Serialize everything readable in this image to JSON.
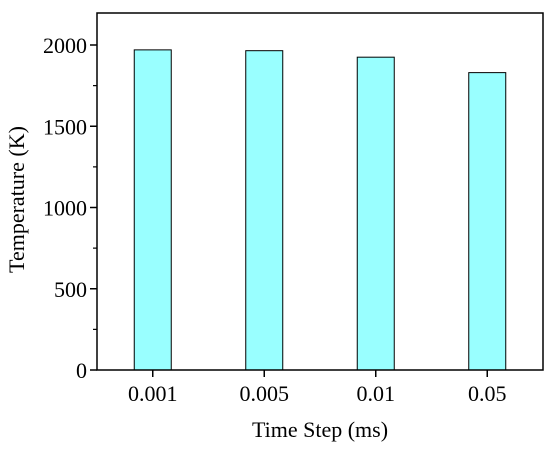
{
  "chart_data": {
    "type": "bar",
    "categories": [
      "0.001",
      "0.005",
      "0.01",
      "0.05"
    ],
    "values": [
      1970,
      1965,
      1925,
      1830
    ],
    "xlabel": "Time Step (ms)",
    "ylabel": "Temperature (K)",
    "ylim": [
      0,
      2000
    ],
    "yticks": [
      "0",
      "500",
      "1000",
      "1500",
      "2000"
    ],
    "grid": false,
    "bar_color": "#99ffff",
    "bar_edge_color": "#000000"
  }
}
